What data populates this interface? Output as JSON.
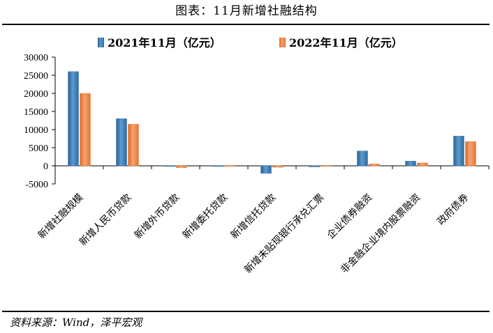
{
  "figure_title": "图表：11月新增社融结构",
  "source": "资料来源：Wind，泽平宏观",
  "colors": {
    "series1": "#3d7fb5",
    "series2": "#f08a4b"
  },
  "chart_data": {
    "type": "bar",
    "categories": [
      "新增社融规模",
      "新增人民币贷款",
      "新增外币贷款",
      "新增委托贷款",
      "新增信托贷款",
      "新增未贴现银行承兑汇票",
      "企业债券融资",
      "非金融企业境内股票融资",
      "政府债券"
    ],
    "series": [
      {
        "name": "2021年11月（亿元）",
        "values": [
          26000,
          13000,
          -50,
          -100,
          -2100,
          -300,
          4100,
          1300,
          8200
        ]
      },
      {
        "name": "2022年11月（亿元）",
        "values": [
          20000,
          11500,
          -500,
          -50,
          -400,
          -50,
          500,
          800,
          6700
        ]
      }
    ],
    "yticks": [
      -5000,
      0,
      5000,
      10000,
      15000,
      20000,
      25000,
      30000
    ],
    "ylim": [
      -5000,
      30000
    ],
    "legend": "top-center",
    "grid": false
  }
}
